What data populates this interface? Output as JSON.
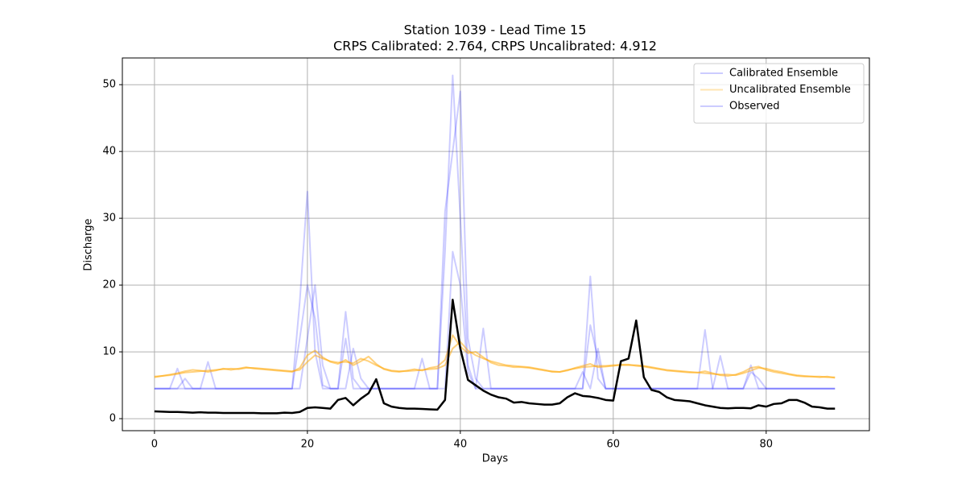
{
  "chart_data": {
    "type": "line",
    "title": "Station 1039 - Lead Time 15",
    "subtitle": "CRPS Calibrated: 2.764, CRPS Uncalibrated: 4.912",
    "xlabel": "Days",
    "ylabel": "Discharge",
    "xlim": [
      -4.2,
      93.5
    ],
    "ylim": [
      -1.8,
      54
    ],
    "xticks": [
      0,
      20,
      40,
      60,
      80
    ],
    "yticks": [
      0,
      10,
      20,
      30,
      40,
      50
    ],
    "grid": true,
    "legend": "upper right",
    "x": [
      0,
      1,
      2,
      3,
      4,
      5,
      6,
      7,
      8,
      9,
      10,
      11,
      12,
      13,
      14,
      15,
      16,
      17,
      18,
      19,
      20,
      21,
      22,
      23,
      24,
      25,
      26,
      27,
      28,
      29,
      30,
      31,
      32,
      33,
      34,
      35,
      36,
      37,
      38,
      39,
      40,
      41,
      42,
      43,
      44,
      45,
      46,
      47,
      48,
      49,
      50,
      51,
      52,
      53,
      54,
      55,
      56,
      57,
      58,
      59,
      60,
      61,
      62,
      63,
      64,
      65,
      66,
      67,
      68,
      69,
      70,
      71,
      72,
      73,
      74,
      75,
      76,
      77,
      78,
      79,
      80,
      81,
      82,
      83,
      84,
      85,
      86,
      87,
      88,
      89
    ],
    "series": [
      {
        "name": "Calibrated Ensemble",
        "color": "blue",
        "alpha": 0.2,
        "width": 2,
        "legend_color": "blue",
        "legend_alpha": 0.2,
        "members": [
          [
            4.5,
            4.5,
            4.5,
            7.5,
            4.5,
            4.5,
            4.5,
            8.5,
            4.5,
            4.5,
            4.5,
            4.5,
            4.5,
            4.5,
            4.5,
            4.5,
            4.5,
            4.5,
            4.5,
            12,
            20,
            15,
            5,
            4.5,
            4.5,
            16,
            6,
            4.5,
            4.5,
            4.5,
            4.5,
            4.5,
            4.5,
            4.5,
            4.5,
            4.5,
            4.5,
            4.5,
            25,
            51.4,
            30,
            8,
            4.5,
            4.5,
            4.5,
            4.5,
            4.5,
            4.5,
            4.5,
            4.5,
            4.5,
            4.5,
            4.5,
            4.5,
            4.5,
            4.5,
            4.5,
            21.3,
            6,
            4.5,
            4.5,
            4.5,
            4.5,
            4.5,
            4.5,
            4.5,
            4.5,
            4.5,
            4.5,
            4.5,
            4.5,
            4.5,
            13.3,
            4.5,
            4.5,
            4.5,
            4.5,
            4.5,
            4.5,
            4.5,
            4.5,
            4.5,
            4.5,
            4.5,
            4.5,
            4.5,
            4.5,
            4.5,
            4.5,
            4.5
          ],
          [
            4.5,
            4.5,
            4.5,
            4.5,
            6,
            4.5,
            4.5,
            4.5,
            4.5,
            4.5,
            4.5,
            4.5,
            4.5,
            4.5,
            4.5,
            4.5,
            4.5,
            4.5,
            4.5,
            17.5,
            34,
            10,
            4.5,
            4.5,
            4.5,
            4.5,
            10.5,
            6,
            4.5,
            4.5,
            4.5,
            4.5,
            4.5,
            4.5,
            4.5,
            9,
            4.5,
            4.5,
            31,
            40,
            49,
            12,
            6,
            4.5,
            4.5,
            4.5,
            4.5,
            4.5,
            4.5,
            4.5,
            4.5,
            4.5,
            4.5,
            4.5,
            4.5,
            4.5,
            4.5,
            14,
            9,
            4.5,
            4.5,
            4.5,
            4.5,
            4.5,
            4.5,
            4.5,
            4.5,
            4.5,
            4.5,
            4.5,
            4.5,
            4.5,
            4.5,
            4.5,
            9.4,
            4.5,
            4.5,
            4.5,
            8,
            4.5,
            4.5,
            4.5,
            4.5,
            4.5,
            4.5,
            4.5,
            4.5,
            4.5,
            4.5,
            4.5
          ],
          [
            4.5,
            4.5,
            4.5,
            4.5,
            4.5,
            4.5,
            4.5,
            4.5,
            4.5,
            4.5,
            4.5,
            4.5,
            4.5,
            4.5,
            4.5,
            4.5,
            4.5,
            4.5,
            4.5,
            4.5,
            12,
            20,
            8,
            4.5,
            4.5,
            12,
            4.5,
            4.5,
            4.5,
            4.5,
            4.5,
            4.5,
            4.5,
            4.5,
            4.5,
            4.5,
            4.5,
            4.5,
            4.5,
            25,
            20,
            7,
            4.5,
            13.5,
            4.5,
            4.5,
            4.5,
            4.5,
            4.5,
            4.5,
            4.5,
            4.5,
            4.5,
            4.5,
            4.5,
            4.5,
            7,
            4.5,
            10.5,
            4.5,
            4.5,
            4.5,
            4.5,
            4.5,
            4.5,
            4.5,
            4.5,
            4.5,
            4.5,
            4.5,
            4.5,
            4.5,
            4.5,
            4.5,
            4.5,
            4.5,
            4.5,
            4.5,
            7,
            6,
            4.5,
            4.5,
            4.5,
            4.5,
            4.5,
            4.5,
            4.5,
            4.5,
            4.5,
            4.5
          ]
        ]
      },
      {
        "name": "Uncalibrated Ensemble",
        "color": "orange",
        "alpha": 0.5,
        "width": 2,
        "legend_color": "orange",
        "legend_alpha": 0.3,
        "members": [
          [
            6.3,
            6.4,
            6.5,
            6.7,
            6.9,
            7.0,
            7.1,
            7.2,
            7.3,
            7.4,
            7.5,
            7.4,
            7.6,
            7.6,
            7.5,
            7.4,
            7.3,
            7.2,
            7.1,
            7.3,
            8.5,
            9.5,
            9.0,
            8.6,
            8.4,
            8.5,
            8.3,
            9.0,
            8.6,
            8.0,
            7.5,
            7.2,
            7.1,
            7.1,
            7.2,
            7.3,
            7.4,
            7.5,
            8.0,
            10.5,
            11.5,
            10.2,
            9.5,
            9.0,
            8.6,
            8.3,
            8.0,
            7.9,
            7.8,
            7.7,
            7.5,
            7.3,
            7.0,
            7.0,
            7.3,
            7.5,
            7.7,
            7.8,
            7.9,
            7.9,
            8.0,
            8.0,
            8.0,
            8.0,
            7.9,
            7.7,
            7.5,
            7.3,
            7.2,
            7.1,
            7.0,
            6.9,
            6.8,
            6.7,
            6.6,
            6.6,
            6.5,
            6.8,
            7.2,
            7.6,
            7.5,
            7.2,
            7.0,
            6.7,
            6.5,
            6.4,
            6.3,
            6.3,
            6.2,
            6.2
          ],
          [
            6.2,
            6.4,
            6.6,
            6.8,
            7.1,
            7.3,
            7.2,
            7.0,
            7.2,
            7.5,
            7.3,
            7.5,
            7.7,
            7.5,
            7.4,
            7.3,
            7.2,
            7.1,
            7.0,
            7.6,
            9.5,
            10.2,
            9.2,
            8.5,
            8.2,
            8.8,
            8.0,
            8.6,
            9.3,
            8.2,
            7.4,
            7.1,
            7.0,
            7.2,
            7.4,
            7.2,
            7.6,
            7.8,
            8.8,
            12.5,
            10.8,
            9.8,
            10.0,
            9.2,
            8.4,
            8.0,
            7.9,
            7.7,
            7.7,
            7.6,
            7.4,
            7.2,
            7.1,
            7.0,
            7.2,
            7.6,
            7.9,
            8.2,
            7.7,
            7.8,
            7.9,
            8.1,
            8.1,
            7.9,
            7.8,
            7.6,
            7.4,
            7.2,
            7.1,
            7.0,
            6.9,
            6.9,
            7.1,
            6.8,
            6.5,
            6.4,
            6.6,
            7.0,
            7.6,
            7.8,
            7.3,
            7.0,
            6.8,
            6.6,
            6.4,
            6.3,
            6.3,
            6.2,
            6.3,
            6.1
          ]
        ]
      },
      {
        "name": "Observed",
        "color": "black",
        "alpha": 1,
        "width": 2.5,
        "legend_color": "blue",
        "legend_alpha": 0.2,
        "members": [
          [
            1.1,
            1.05,
            1.0,
            1.0,
            0.95,
            0.9,
            0.95,
            0.9,
            0.9,
            0.85,
            0.85,
            0.85,
            0.85,
            0.85,
            0.8,
            0.8,
            0.8,
            0.9,
            0.85,
            1.0,
            1.6,
            1.7,
            1.6,
            1.5,
            2.8,
            3.1,
            2.0,
            3.0,
            3.8,
            5.9,
            2.3,
            1.8,
            1.6,
            1.5,
            1.5,
            1.45,
            1.4,
            1.35,
            2.8,
            17.8,
            10.5,
            5.8,
            5.0,
            4.2,
            3.6,
            3.2,
            3.0,
            2.4,
            2.5,
            2.3,
            2.2,
            2.1,
            2.1,
            2.3,
            3.2,
            3.8,
            3.4,
            3.3,
            3.1,
            2.8,
            2.7,
            8.6,
            9.0,
            14.7,
            6.2,
            4.3,
            4.0,
            3.2,
            2.8,
            2.7,
            2.6,
            2.3,
            2.0,
            1.8,
            1.6,
            1.55,
            1.6,
            1.6,
            1.55,
            2.0,
            1.8,
            2.2,
            2.3,
            2.8,
            2.8,
            2.4,
            1.8,
            1.7,
            1.5,
            1.5
          ]
        ]
      }
    ]
  }
}
